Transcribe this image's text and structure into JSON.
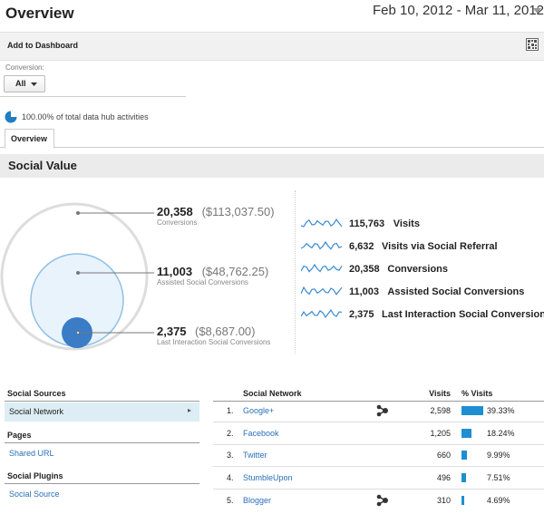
{
  "header": {
    "title": "Overview",
    "date_range": "Feb 10, 2012 - Mar 11, 2012"
  },
  "toolbar": {
    "add_to_dashboard": "Add to Dashboard"
  },
  "segment": {
    "label": "Conversion:",
    "button": "All"
  },
  "coverage": "100.00% of total data hub activities",
  "tabs": [
    "Overview"
  ],
  "section_title": "Social Value",
  "circles": [
    {
      "value": "20,358",
      "amount": "($113,037.50)",
      "label": "Conversions"
    },
    {
      "value": "11,003",
      "amount": "($48,762.25)",
      "label": "Assisted Social Conversions"
    },
    {
      "value": "2,375",
      "amount": "($8,687.00)",
      "label": "Last Interaction Social Conversions"
    }
  ],
  "metrics": [
    {
      "value": "115,763",
      "label": "Visits"
    },
    {
      "value": "6,632",
      "label": "Visits via Social Referral"
    },
    {
      "value": "20,358",
      "label": "Conversions"
    },
    {
      "value": "11,003",
      "label": "Assisted Social Conversions"
    },
    {
      "value": "2,375",
      "label": "Last Interaction Social Conversions"
    }
  ],
  "sidebar": [
    {
      "heading": "Social Sources",
      "items": [
        "Social Network"
      ]
    },
    {
      "heading": "Pages",
      "items": [
        "Shared URL"
      ]
    },
    {
      "heading": "Social Plugins",
      "items": [
        "Social Source"
      ]
    }
  ],
  "table": {
    "columns": [
      "Social Network",
      "Visits",
      "% Visits"
    ],
    "rows": [
      {
        "rank": "1.",
        "network": "Google+",
        "visits": "2,598",
        "pct_visits": 39.33,
        "pct_visits_label": "39.33%"
      },
      {
        "rank": "2.",
        "network": "Facebook",
        "visits": "1,205",
        "pct_visits": 18.24,
        "pct_visits_label": "18.24%"
      },
      {
        "rank": "3.",
        "network": "Twitter",
        "visits": "660",
        "pct_visits": 9.99,
        "pct_visits_label": "9.99%"
      },
      {
        "rank": "4.",
        "network": "StumbleUpon",
        "visits": "496",
        "pct_visits": 7.51,
        "pct_visits_label": "7.51%"
      },
      {
        "rank": "5.",
        "network": "Blogger",
        "visits": "310",
        "pct_visits": 4.69,
        "pct_visits_label": "4.69%"
      }
    ]
  }
}
